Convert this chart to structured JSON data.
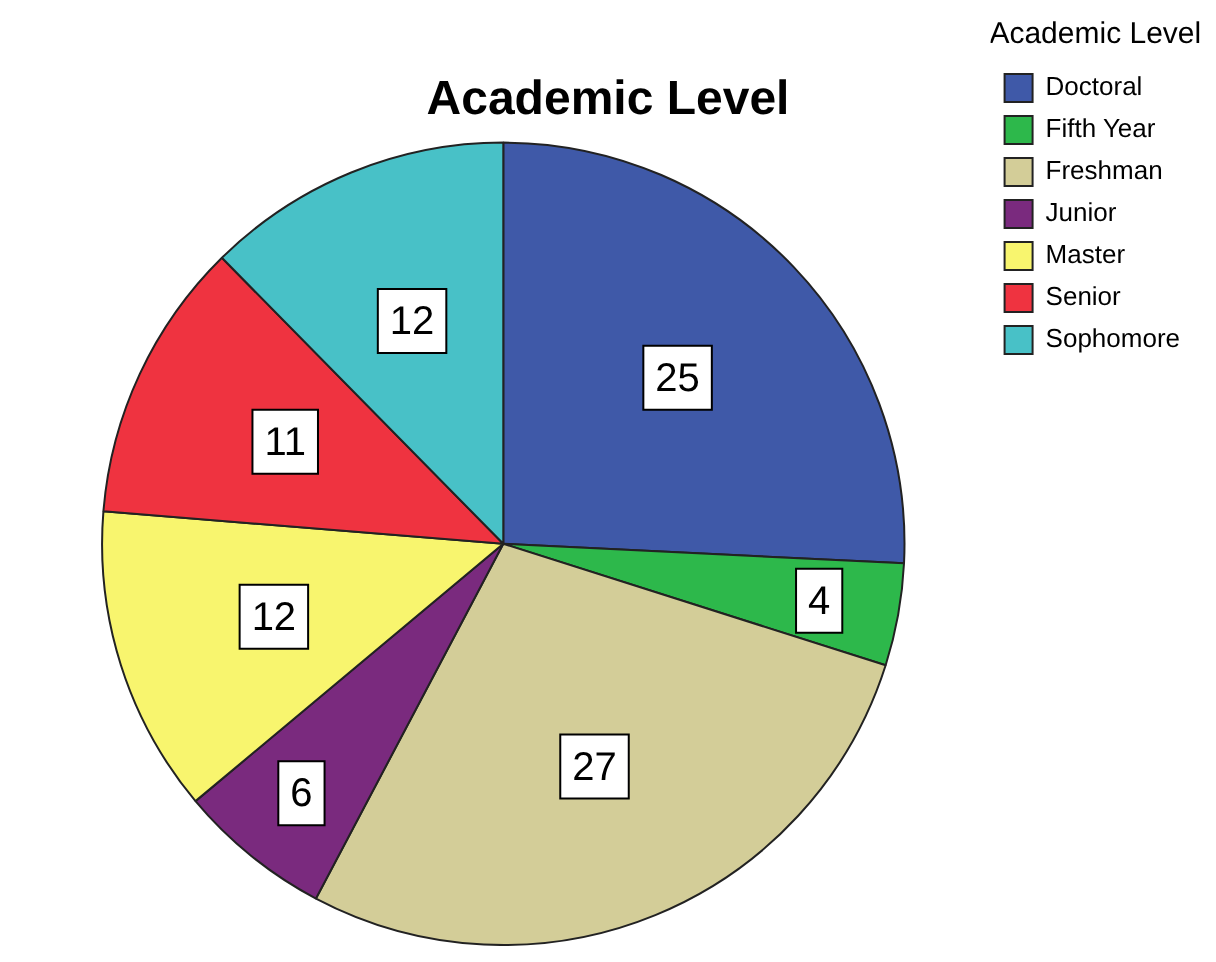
{
  "chart_data": {
    "type": "pie",
    "title": "Academic Level",
    "legend_title": "Academic Level",
    "legend": "top right",
    "data_labels": true,
    "categories": [
      "Doctoral",
      "Fifth Year",
      "Freshman",
      "Junior",
      "Master",
      "Senior",
      "Sophomore"
    ],
    "values": [
      25,
      4,
      27,
      6,
      12,
      11,
      12
    ],
    "colors": [
      "#3f59a8",
      "#2db84b",
      "#d3cd98",
      "#7a2a7e",
      "#f8f56e",
      "#ef3340",
      "#48c1c7"
    ]
  }
}
